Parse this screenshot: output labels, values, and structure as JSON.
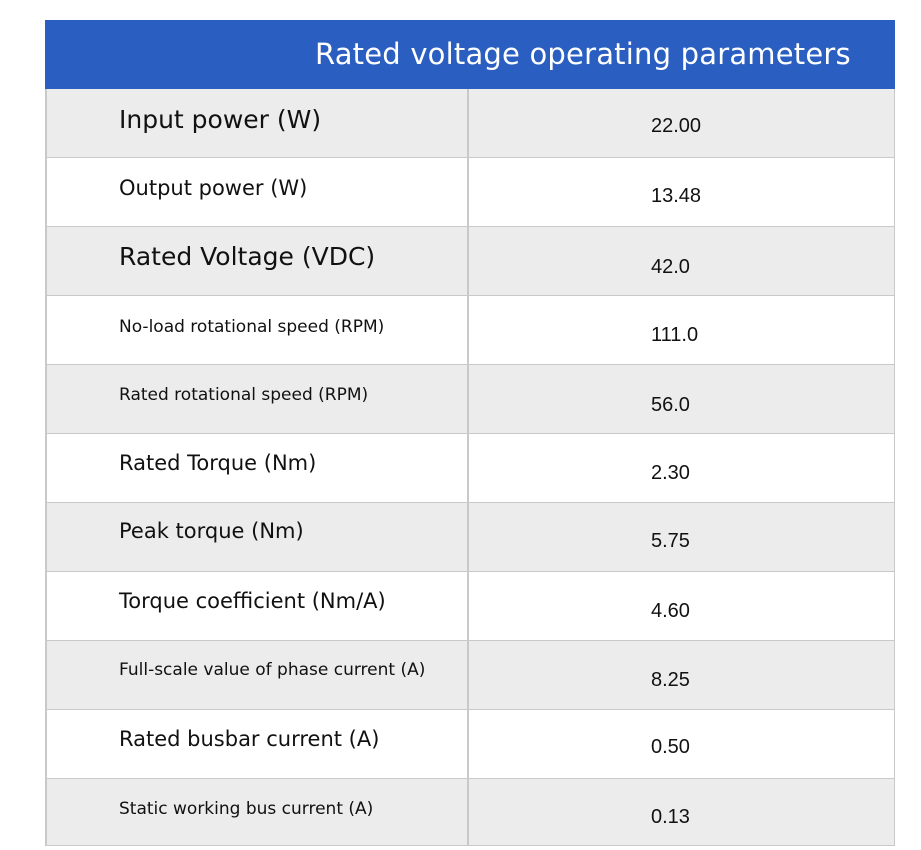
{
  "table": {
    "title": "Rated voltage operating parameters",
    "rows": [
      {
        "label": "Input power (W)",
        "value": "22.00"
      },
      {
        "label": "Output power (W)",
        "value": "13.48"
      },
      {
        "label": "Rated Voltage (VDC)",
        "value": "42.0"
      },
      {
        "label": "No-load rotational speed (RPM)",
        "value": "111.0"
      },
      {
        "label": "Rated rotational speed (RPM)",
        "value": "56.0"
      },
      {
        "label": "Rated Torque (Nm)",
        "value": "2.30"
      },
      {
        "label": "Peak torque (Nm)",
        "value": "5.75"
      },
      {
        "label": "Torque coefficient (Nm/A)",
        "value": "4.60"
      },
      {
        "label": "Full-scale value of phase current (A)",
        "value": "8.25"
      },
      {
        "label": "Rated busbar current (A)",
        "value": "0.50"
      },
      {
        "label": "Static working bus current (A)",
        "value": "0.13"
      }
    ]
  },
  "colors": {
    "header_bg": "#2a5fc1",
    "row_shade": "#ececec",
    "border": "#c9c9c9"
  }
}
